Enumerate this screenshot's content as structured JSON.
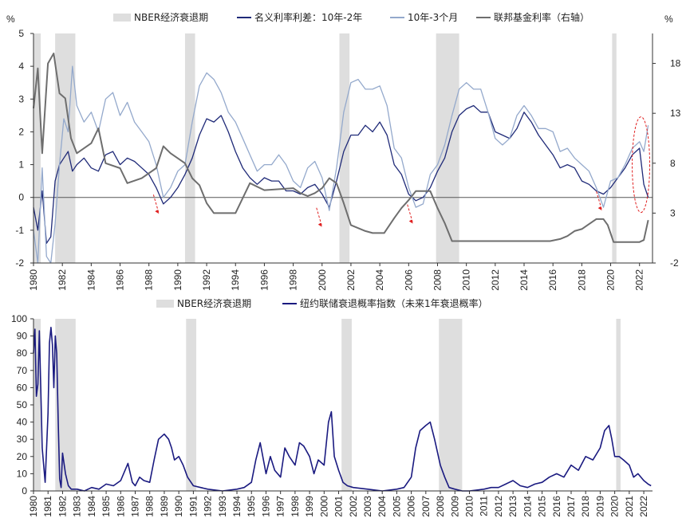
{
  "chart_data": [
    {
      "type": "line",
      "title": "",
      "y_unit_left": "%",
      "y_unit_right": "%",
      "xlim": [
        1980,
        2022.9
      ],
      "ylim_left": [
        -2,
        5
      ],
      "ylim_right": [
        -2,
        21
      ],
      "x_ticks": [
        "1980",
        "1982",
        "1984",
        "1986",
        "1988",
        "1990",
        "1992",
        "1994",
        "1996",
        "1998",
        "2000",
        "2002",
        "2004",
        "2006",
        "2008",
        "2010",
        "2012",
        "2014",
        "2016",
        "2018",
        "2020",
        "2022"
      ],
      "y_ticks_left": [
        "-2",
        "-1",
        "0",
        "1",
        "2",
        "3",
        "4",
        "5"
      ],
      "y_ticks_right": [
        "-2",
        "3",
        "8",
        "13",
        "18"
      ],
      "recessions": [
        [
          1980.0,
          1980.5
        ],
        [
          1981.5,
          1982.9
        ],
        [
          1990.5,
          1991.2
        ],
        [
          2001.2,
          2001.9
        ],
        [
          2007.9,
          2009.5
        ],
        [
          2020.1,
          2020.4
        ]
      ],
      "legend": [
        "NBER经济衰退期",
        "名义利率利差：10年-2年",
        "10年-3个月",
        "联邦基金利率（右轴）"
      ],
      "legend_position": "top",
      "series": [
        {
          "name": "名义利率利差：10年-2年",
          "axis": "left",
          "color": "#1f2a78",
          "x": [
            1980.0,
            1980.3,
            1980.6,
            1980.9,
            1981.2,
            1981.5,
            1981.8,
            1982.1,
            1982.4,
            1982.7,
            1983.0,
            1983.5,
            1984.0,
            1984.5,
            1985.0,
            1985.5,
            1986.0,
            1986.5,
            1987.0,
            1987.5,
            1988.0,
            1988.5,
            1989.0,
            1989.5,
            1990.0,
            1990.5,
            1991.0,
            1991.5,
            1992.0,
            1992.5,
            1993.0,
            1993.5,
            1994.0,
            1994.5,
            1995.0,
            1995.5,
            1996.0,
            1996.5,
            1997.0,
            1997.5,
            1998.0,
            1998.5,
            1999.0,
            1999.5,
            2000.0,
            2000.5,
            2001.0,
            2001.5,
            2002.0,
            2002.5,
            2003.0,
            2003.5,
            2004.0,
            2004.5,
            2005.0,
            2005.5,
            2006.0,
            2006.5,
            2007.0,
            2007.5,
            2008.0,
            2008.5,
            2009.0,
            2009.5,
            2010.0,
            2010.5,
            2011.0,
            2011.5,
            2012.0,
            2012.5,
            2013.0,
            2013.5,
            2014.0,
            2014.5,
            2015.0,
            2015.5,
            2016.0,
            2016.5,
            2017.0,
            2017.5,
            2018.0,
            2018.5,
            2019.0,
            2019.5,
            2020.0,
            2020.5,
            2021.0,
            2021.5,
            2022.0,
            2022.3,
            2022.6
          ],
          "y": [
            -0.3,
            -1.0,
            0.2,
            -1.4,
            -1.2,
            0.5,
            1.0,
            1.2,
            1.4,
            0.8,
            1.0,
            1.2,
            0.9,
            0.8,
            1.3,
            1.4,
            1.0,
            1.2,
            1.1,
            0.9,
            0.7,
            0.3,
            -0.2,
            0.0,
            0.3,
            0.7,
            1.2,
            1.9,
            2.4,
            2.3,
            2.5,
            2.0,
            1.4,
            0.9,
            0.6,
            0.4,
            0.6,
            0.5,
            0.5,
            0.2,
            0.2,
            0.1,
            0.3,
            0.4,
            0.1,
            -0.3,
            0.5,
            1.4,
            1.9,
            1.9,
            2.2,
            2.0,
            2.3,
            1.9,
            1.0,
            0.7,
            0.1,
            -0.1,
            0.0,
            0.3,
            0.8,
            1.2,
            2.0,
            2.5,
            2.7,
            2.8,
            2.6,
            2.6,
            2.0,
            1.9,
            1.8,
            2.1,
            2.6,
            2.3,
            1.9,
            1.6,
            1.3,
            0.9,
            1.0,
            0.9,
            0.5,
            0.4,
            0.2,
            0.1,
            0.3,
            0.6,
            0.9,
            1.3,
            1.5,
            0.4,
            0.0
          ]
        },
        {
          "name": "10年-3个月",
          "axis": "left",
          "color": "#94a9cc",
          "x": [
            1980.0,
            1980.3,
            1980.6,
            1980.9,
            1981.2,
            1981.5,
            1981.8,
            1982.1,
            1982.4,
            1982.7,
            1983.0,
            1983.5,
            1984.0,
            1984.5,
            1985.0,
            1985.5,
            1986.0,
            1986.5,
            1987.0,
            1987.5,
            1988.0,
            1988.5,
            1989.0,
            1989.5,
            1990.0,
            1990.5,
            1991.0,
            1991.5,
            1992.0,
            1992.5,
            1993.0,
            1993.5,
            1994.0,
            1994.5,
            1995.0,
            1995.5,
            1996.0,
            1996.5,
            1997.0,
            1997.5,
            1998.0,
            1998.5,
            1999.0,
            1999.5,
            2000.0,
            2000.5,
            2001.0,
            2001.5,
            2002.0,
            2002.5,
            2003.0,
            2003.5,
            2004.0,
            2004.5,
            2005.0,
            2005.5,
            2006.0,
            2006.5,
            2007.0,
            2007.5,
            2008.0,
            2008.5,
            2009.0,
            2009.5,
            2010.0,
            2010.5,
            2011.0,
            2011.5,
            2012.0,
            2012.5,
            2013.0,
            2013.5,
            2014.0,
            2014.5,
            2015.0,
            2015.5,
            2016.0,
            2016.5,
            2017.0,
            2017.5,
            2018.0,
            2018.5,
            2019.0,
            2019.5,
            2020.0,
            2020.5,
            2021.0,
            2021.5,
            2022.0,
            2022.3,
            2022.6
          ],
          "y": [
            -1.0,
            -2.0,
            0.9,
            -1.8,
            -2.0,
            -0.8,
            1.0,
            2.4,
            2.0,
            4.0,
            2.8,
            2.3,
            2.6,
            2.0,
            3.0,
            3.2,
            2.5,
            2.9,
            2.3,
            2.0,
            1.7,
            1.0,
            0.0,
            0.3,
            0.8,
            1.0,
            2.3,
            3.4,
            3.8,
            3.6,
            3.2,
            2.6,
            2.3,
            1.8,
            1.3,
            0.8,
            1.0,
            1.0,
            1.3,
            1.0,
            0.5,
            0.3,
            0.9,
            1.1,
            0.6,
            -0.4,
            0.9,
            2.6,
            3.5,
            3.6,
            3.3,
            3.3,
            3.4,
            2.8,
            1.5,
            1.2,
            0.3,
            -0.3,
            -0.2,
            0.7,
            1.0,
            1.6,
            2.5,
            3.3,
            3.5,
            3.3,
            3.3,
            2.6,
            1.8,
            1.6,
            1.8,
            2.5,
            2.8,
            2.5,
            2.1,
            2.1,
            2.0,
            1.4,
            1.5,
            1.2,
            1.0,
            0.8,
            0.3,
            -0.3,
            0.5,
            0.6,
            1.0,
            1.5,
            1.7,
            1.4,
            2.2
          ]
        },
        {
          "name": "联邦基金利率（右轴）",
          "axis": "right",
          "color": "#6e6e6e",
          "x": [
            1980.0,
            1980.3,
            1980.6,
            1981.0,
            1981.4,
            1981.8,
            1982.2,
            1982.6,
            1983.0,
            1984.0,
            1984.5,
            1985.0,
            1986.0,
            1986.5,
            1987.5,
            1988.5,
            1989.0,
            1989.5,
            1990.5,
            1991.0,
            1991.5,
            1992.0,
            1992.5,
            1993.0,
            1994.0,
            1994.5,
            1995.0,
            1996.0,
            1998.0,
            1998.5,
            1999.0,
            1999.5,
            2000.0,
            2000.5,
            2001.0,
            2001.5,
            2002.0,
            2003.0,
            2003.5,
            2004.3,
            2005.0,
            2005.5,
            2006.0,
            2006.5,
            2007.5,
            2008.0,
            2008.5,
            2009.0,
            2015.8,
            2016.5,
            2017.0,
            2017.5,
            2018.0,
            2018.5,
            2019.0,
            2019.5,
            2019.8,
            2020.2,
            2021.0,
            2022.0,
            2022.3,
            2022.6
          ],
          "y": [
            13.5,
            17.5,
            9.0,
            18.0,
            19.0,
            15.0,
            14.5,
            10.5,
            9.0,
            10.0,
            11.5,
            8.0,
            7.5,
            6.0,
            6.5,
            7.5,
            9.7,
            9.0,
            8.0,
            6.5,
            5.8,
            4.0,
            3.0,
            3.0,
            3.0,
            4.5,
            6.0,
            5.3,
            5.5,
            5.0,
            4.7,
            5.0,
            5.5,
            6.5,
            6.0,
            4.0,
            1.8,
            1.2,
            1.0,
            1.0,
            2.5,
            3.5,
            4.3,
            5.2,
            5.2,
            3.5,
            2.0,
            0.2,
            0.2,
            0.4,
            0.7,
            1.2,
            1.4,
            1.9,
            2.4,
            2.4,
            1.8,
            0.1,
            0.1,
            0.1,
            0.3,
            2.3
          ]
        }
      ],
      "annotations": [
        {
          "type": "arrow",
          "x": 1988.7,
          "y": -0.5
        },
        {
          "type": "arrow",
          "x": 2000.0,
          "y": -0.9
        },
        {
          "type": "arrow",
          "x": 2006.3,
          "y": -0.8
        },
        {
          "type": "arrow",
          "x": 2019.4,
          "y": -0.4
        },
        {
          "type": "ellipse",
          "x": 2022.1,
          "y": 1.0
        }
      ]
    },
    {
      "type": "line",
      "title": "",
      "xlim": [
        1980,
        2022.6
      ],
      "ylim": [
        0,
        100
      ],
      "x_ticks": [
        "1980",
        "1981",
        "1982",
        "1983",
        "1984",
        "1985",
        "1986",
        "1987",
        "1988",
        "1989",
        "1990",
        "1991",
        "1992",
        "1993",
        "1994",
        "1995",
        "1996",
        "1997",
        "1998",
        "1999",
        "2000",
        "2001",
        "2002",
        "2003",
        "2004",
        "2005",
        "2006",
        "2007",
        "2008",
        "2009",
        "2010",
        "2011",
        "2012",
        "2013",
        "2014",
        "2015",
        "2016",
        "2017",
        "2018",
        "2019",
        "2020",
        "2021",
        "2022"
      ],
      "y_ticks": [
        "0",
        "10",
        "20",
        "30",
        "40",
        "50",
        "60",
        "70",
        "80",
        "90",
        "100"
      ],
      "recessions": [
        [
          1980.0,
          1980.5
        ],
        [
          1981.5,
          1982.9
        ],
        [
          1990.5,
          1991.2
        ],
        [
          2001.2,
          2001.9
        ],
        [
          2007.9,
          2009.5
        ],
        [
          2020.1,
          2020.4
        ]
      ],
      "legend": [
        "NBER经济衰退期",
        "纽约联储衰退概率指数（未来1年衰退概率）"
      ],
      "legend_position": "top",
      "series": [
        {
          "name": "纽约联储衰退概率指数（未来1年衰退概率）",
          "color": "#1a1a80",
          "x": [
            1980.0,
            1980.1,
            1980.2,
            1980.3,
            1980.4,
            1980.5,
            1980.6,
            1980.8,
            1981.0,
            1981.1,
            1981.2,
            1981.3,
            1981.4,
            1981.5,
            1981.6,
            1981.7,
            1981.8,
            1981.9,
            1982.0,
            1982.2,
            1982.4,
            1982.6,
            1983.0,
            1983.5,
            1984.0,
            1984.5,
            1985.0,
            1985.5,
            1986.0,
            1986.5,
            1986.8,
            1987.0,
            1987.3,
            1987.6,
            1988.0,
            1988.3,
            1988.6,
            1989.0,
            1989.3,
            1989.5,
            1989.7,
            1990.0,
            1990.3,
            1990.6,
            1991.0,
            1991.5,
            1992.0,
            1993.0,
            1994.0,
            1994.5,
            1995.0,
            1995.3,
            1995.6,
            1996.0,
            1996.3,
            1996.6,
            1997.0,
            1997.3,
            1997.6,
            1998.0,
            1998.3,
            1998.6,
            1999.0,
            1999.3,
            1999.6,
            2000.0,
            2000.3,
            2000.5,
            2000.7,
            2001.0,
            2001.3,
            2001.6,
            2002.0,
            2003.0,
            2004.0,
            2005.0,
            2005.5,
            2006.0,
            2006.3,
            2006.6,
            2007.0,
            2007.3,
            2007.6,
            2008.0,
            2008.3,
            2008.6,
            2009.0,
            2009.5,
            2010.0,
            2011.0,
            2011.5,
            2012.0,
            2012.5,
            2013.0,
            2013.5,
            2014.0,
            2014.5,
            2015.0,
            2015.5,
            2016.0,
            2016.5,
            2017.0,
            2017.5,
            2018.0,
            2018.5,
            2019.0,
            2019.3,
            2019.6,
            2019.8,
            2020.0,
            2020.3,
            2020.6,
            2021.0,
            2021.3,
            2021.6,
            2022.0,
            2022.3,
            2022.5
          ],
          "y": [
            80,
            94,
            55,
            62,
            93,
            60,
            25,
            5,
            45,
            86,
            95,
            85,
            60,
            90,
            80,
            40,
            7,
            2,
            22,
            10,
            3,
            1,
            1,
            0,
            2,
            1,
            4,
            3,
            6,
            16,
            5,
            3,
            8,
            6,
            5,
            18,
            30,
            33,
            30,
            25,
            18,
            20,
            15,
            8,
            3,
            2,
            1,
            0,
            1,
            2,
            5,
            18,
            28,
            10,
            20,
            12,
            8,
            25,
            20,
            15,
            28,
            26,
            20,
            10,
            18,
            15,
            40,
            46,
            20,
            12,
            5,
            3,
            2,
            1,
            0,
            1,
            2,
            8,
            25,
            35,
            38,
            40,
            30,
            15,
            8,
            2,
            1,
            0,
            0,
            1,
            2,
            2,
            4,
            6,
            3,
            2,
            4,
            5,
            8,
            10,
            8,
            15,
            12,
            20,
            18,
            25,
            35,
            38,
            30,
            20,
            20,
            18,
            15,
            8,
            10,
            6,
            4,
            3
          ]
        }
      ]
    }
  ]
}
